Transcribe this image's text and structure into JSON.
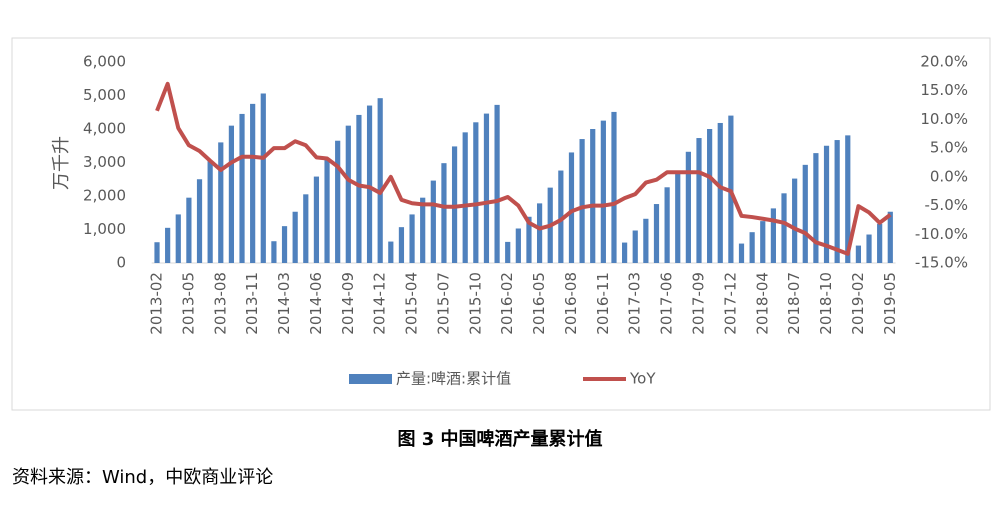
{
  "chart_data": {
    "type": "bar_line",
    "y_label": "万千升",
    "caption": "图 3 中国啤酒产量累计值",
    "source": "资料来源：Wind，中欧商业评论",
    "categories": [
      "2013-02",
      null,
      null,
      "2013-05",
      null,
      null,
      "2013-08",
      null,
      null,
      "2013-11",
      null,
      null,
      "2014-03",
      null,
      null,
      "2014-06",
      null,
      null,
      "2014-09",
      null,
      null,
      "2014-12",
      null,
      null,
      "2015-04",
      null,
      null,
      "2015-07",
      null,
      null,
      "2015-10",
      null,
      null,
      "2016-02",
      null,
      null,
      "2016-05",
      null,
      null,
      "2016-08",
      null,
      null,
      "2016-11",
      null,
      null,
      "2017-03",
      null,
      null,
      "2017-06",
      null,
      null,
      "2017-09",
      null,
      null,
      "2017-12",
      null,
      null,
      "2018-04",
      null,
      null,
      "2018-07",
      null,
      null,
      "2018-10",
      null,
      null,
      "2019-02",
      null,
      null,
      "2019-05"
    ],
    "series": [
      {
        "name": "产量:啤酒:累计值",
        "color": "#4f81bd",
        "kind": "bar",
        "values": [
          620,
          1050,
          1450,
          1950,
          2500,
          3050,
          3600,
          4100,
          4450,
          4750,
          5060,
          650,
          1100,
          1530,
          2050,
          2580,
          3100,
          3650,
          4100,
          4420,
          4700,
          4920,
          640,
          1070,
          1450,
          1950,
          2460,
          2980,
          3480,
          3900,
          4200,
          4460,
          4720,
          630,
          1030,
          1380,
          1780,
          2250,
          2760,
          3300,
          3700,
          4000,
          4250,
          4510,
          610,
          970,
          1320,
          1760,
          2260,
          2760,
          3320,
          3730,
          4000,
          4180,
          4400,
          580,
          920,
          1250,
          1630,
          2080,
          2520,
          2930,
          3280,
          3500,
          3670,
          3810,
          520,
          850,
          1170,
          1530
        ]
      },
      {
        "name": "YoY",
        "color": "#c0504d",
        "kind": "line",
        "axis": "y2",
        "values": [
          11.5,
          16.2,
          8.5,
          5.5,
          4.5,
          2.8,
          1.2,
          2.5,
          3.5,
          3.5,
          3.3,
          5.0,
          5.0,
          6.2,
          5.5,
          3.4,
          3.2,
          1.8,
          -0.5,
          -1.5,
          -1.8,
          -2.8,
          0.0,
          -4.0,
          -4.6,
          -4.8,
          -4.8,
          -5.2,
          -5.2,
          -5.0,
          -4.8,
          -4.5,
          -4.2,
          -3.5,
          -5.0,
          -8.0,
          -9.0,
          -8.5,
          -7.5,
          -6.0,
          -5.3,
          -5.0,
          -5.0,
          -4.7,
          -3.7,
          -3.0,
          -1.0,
          -0.5,
          0.8,
          0.8,
          0.8,
          0.8,
          0.0,
          -1.8,
          -2.5,
          -6.8,
          -7.0,
          -7.3,
          -7.6,
          -8.0,
          -9.0,
          -9.8,
          -11.4,
          -12.0,
          -12.7,
          -13.4,
          -5.1,
          -6.2,
          -8.0,
          -6.6
        ]
      }
    ],
    "ylim": [
      0,
      6000
    ],
    "yticks": [
      0,
      {
        "value": 1000,
        "label": "1,000"
      },
      {
        "value": 2000,
        "label": "2,000"
      },
      {
        "value": 3000,
        "label": "3,000"
      },
      {
        "value": 4000,
        "label": "4,000"
      },
      {
        "value": 5000,
        "label": "5,000"
      },
      {
        "value": 6000,
        "label": "6,000"
      }
    ],
    "y2lim": [
      -15,
      20
    ],
    "y2ticks": [
      {
        "value": -15,
        "label": "-15.0%"
      },
      {
        "value": -10,
        "label": "-10.0%"
      },
      {
        "value": -5,
        "label": "-5.0%"
      },
      {
        "value": 0,
        "label": "0.0%"
      },
      {
        "value": 5,
        "label": "5.0%"
      },
      {
        "value": 10,
        "label": "10.0%"
      },
      {
        "value": 15,
        "label": "15.0%"
      },
      {
        "value": 20,
        "label": "20.0%"
      }
    ],
    "legend": "bottom"
  }
}
